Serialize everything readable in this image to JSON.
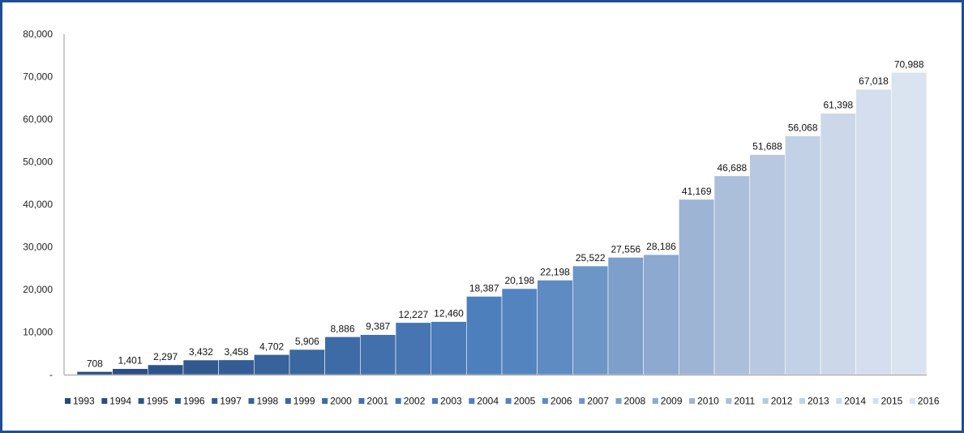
{
  "chart_data": {
    "type": "bar",
    "title": "",
    "xlabel": "",
    "ylabel": "",
    "categories": [
      "1993",
      "1994",
      "1995",
      "1996",
      "1997",
      "1998",
      "1999",
      "2000",
      "2001",
      "2002",
      "2003",
      "2004",
      "2005",
      "2006",
      "2007",
      "2008",
      "2009",
      "2010",
      "2011",
      "2012",
      "2013",
      "2014",
      "2015",
      "2016"
    ],
    "values": [
      708,
      1401,
      2297,
      3432,
      3458,
      4702,
      5906,
      8886,
      9387,
      12227,
      12460,
      18387,
      20198,
      22198,
      25522,
      27556,
      28186,
      41169,
      46688,
      51688,
      56068,
      61398,
      67018,
      70988
    ],
    "value_labels": [
      "708",
      "1,401",
      "2,297",
      "3,432",
      "3,458",
      "4,702",
      "5,906",
      "8,886",
      "9,387",
      "12,227",
      "12,460",
      "18,387",
      "20,198",
      "22,198",
      "25,522",
      "27,556",
      "28,186",
      "41,169",
      "46,688",
      "51,688",
      "56,068",
      "61,398",
      "67,018",
      "70,988"
    ],
    "colors": [
      "#234a7d",
      "#284f85",
      "#2c548a",
      "#30598f",
      "#335d94",
      "#37629a",
      "#3b67a0",
      "#3e6ba6",
      "#4270ac",
      "#4675b2",
      "#4a7ab8",
      "#4e7fbd",
      "#5484c0",
      "#5d8bc2",
      "#6c96c6",
      "#7d9fca",
      "#8ea9cf",
      "#9db4d4",
      "#abbfda",
      "#b7c8e0",
      "#c2d1e6",
      "#ccd8ea",
      "#d4deee",
      "#dae3f0"
    ],
    "ylim": [
      0,
      80000
    ],
    "yticks": [
      0,
      10000,
      20000,
      30000,
      40000,
      50000,
      60000,
      70000,
      80000
    ],
    "ytick_labels": [
      "-",
      "10,000",
      "20,000",
      "30,000",
      "40,000",
      "50,000",
      "60,000",
      "70,000",
      "80,000"
    ],
    "grid": false,
    "legend": "bottom",
    "frame_color": "#1f4e96"
  }
}
